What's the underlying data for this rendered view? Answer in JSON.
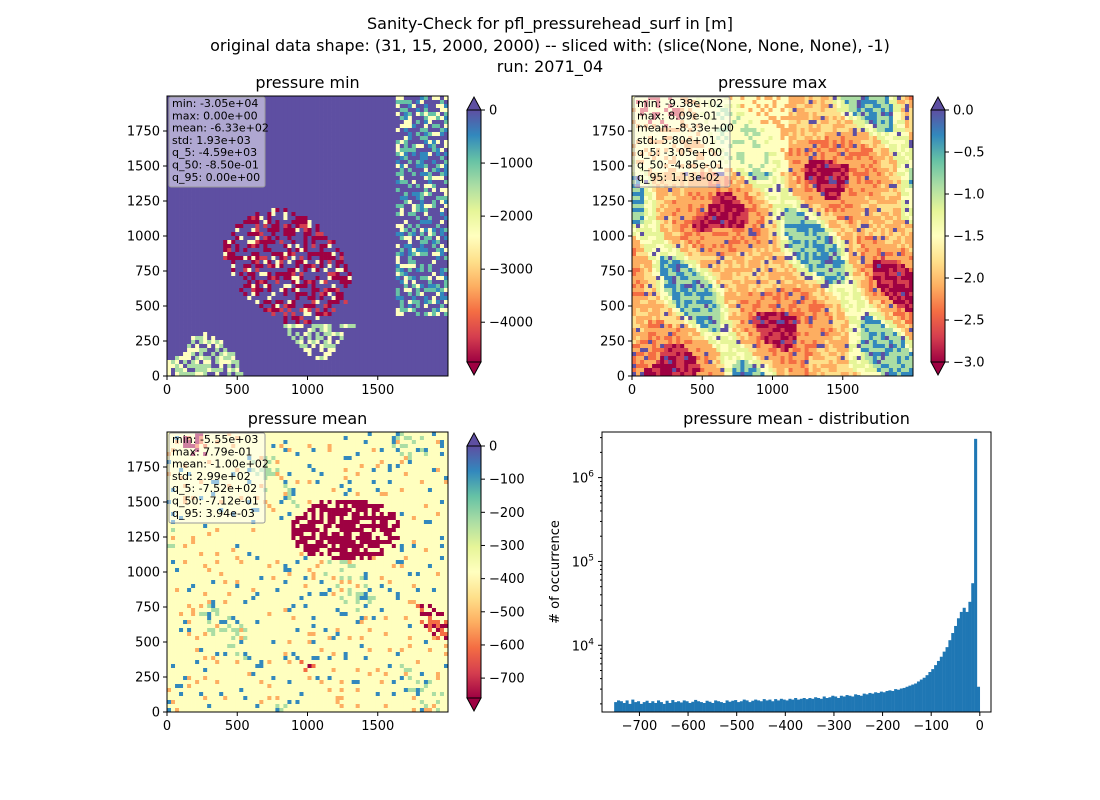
{
  "figure": {
    "suptitle_lines": [
      "Sanity-Check for pfl_pressurehead_surf in [m]",
      "original data shape: (31, 15, 2000, 2000) -- sliced with: (slice(None, None, None), -1)",
      "run: 2071_04"
    ]
  },
  "colors": {
    "spectral": [
      "#9e0142",
      "#d53e4f",
      "#f46d43",
      "#fdae61",
      "#fee08b",
      "#ffffbf",
      "#e6f598",
      "#abdda4",
      "#66c2a5",
      "#3288bd",
      "#5e4fa2"
    ],
    "histogram_bar": "#1f77b4"
  },
  "chart_data": [
    {
      "type": "heatmap",
      "title": "pressure min",
      "xlim": [
        0,
        2000
      ],
      "ylim": [
        0,
        2000
      ],
      "xticks": [
        0,
        500,
        1000,
        1500
      ],
      "yticks": [
        0,
        250,
        500,
        750,
        1000,
        1250,
        1500,
        1750
      ],
      "colorbar": {
        "min": -4750,
        "max": 0,
        "ticks": [
          0,
          -1000,
          -2000,
          -3000,
          -4000
        ]
      },
      "stats": [
        "min: -3.05e+04",
        "max: 0.00e+00",
        "mean: -6.33e+02",
        "std: 1.93e+03",
        "q_5: -4.59e+03",
        "q_50: -8.50e-01",
        "q_95: 0.00e+00"
      ]
    },
    {
      "type": "heatmap",
      "title": "pressure max",
      "xlim": [
        0,
        2000
      ],
      "ylim": [
        0,
        2000
      ],
      "xticks": [
        0,
        500,
        1000,
        1500
      ],
      "yticks": [
        0,
        250,
        500,
        750,
        1000,
        1250,
        1500,
        1750
      ],
      "colorbar": {
        "min": -3.0,
        "max": 0.0,
        "ticks": [
          "0.0",
          "-0.5",
          "-1.0",
          "-1.5",
          "-2.0",
          "-2.5",
          "-3.0"
        ]
      },
      "stats": [
        "min: -9.38e+02",
        "max: 8.09e-01",
        "mean: -8.33e+00",
        "std: 5.80e+01",
        "q_5: -3.05e+00",
        "q_50: -4.85e-01",
        "q_95: 1.13e-02"
      ]
    },
    {
      "type": "heatmap",
      "title": "pressure mean",
      "xlim": [
        0,
        2000
      ],
      "ylim": [
        0,
        2000
      ],
      "xticks": [
        0,
        500,
        1000,
        1500
      ],
      "yticks": [
        0,
        250,
        500,
        750,
        1000,
        1250,
        1500,
        1750
      ],
      "colorbar": {
        "min": -760,
        "max": 0,
        "ticks": [
          0,
          -100,
          -200,
          -300,
          -400,
          -500,
          -600,
          -700
        ]
      },
      "stats": [
        "min: -5.55e+03",
        "max: 7.79e-01",
        "mean: -1.00e+02",
        "std: 2.99e+02",
        "q_5: -7.52e+02",
        "q_50: -7.12e-01",
        "q_95: 3.94e-03"
      ]
    },
    {
      "type": "bar",
      "title": "pressure mean - distribution",
      "ylabel": "# of occurrence",
      "yscale": "log",
      "xlim": [
        -777,
        23
      ],
      "ylim": [
        1600,
        3500000
      ],
      "xticks": [
        -700,
        -600,
        -500,
        -400,
        -300,
        -200,
        -100,
        0
      ],
      "yticks": [
        {
          "value": 10000,
          "label": "10^4"
        },
        {
          "value": 100000,
          "label": "10^5"
        },
        {
          "value": 1000000,
          "label": "10^6"
        }
      ],
      "bin_range": [
        -752,
        0
      ],
      "bin_width": 5,
      "values": [
        2100,
        2200,
        2150,
        2050,
        2200,
        2000,
        2250,
        2100,
        2150,
        2000,
        2100,
        2180,
        2050,
        2150,
        2050,
        2200,
        2100,
        2000,
        2180,
        2050,
        2220,
        2100,
        2150,
        2080,
        2200,
        2150,
        2050,
        2120,
        2230,
        2150,
        2100,
        2050,
        2180,
        2120,
        2050,
        2200,
        2150,
        2100,
        2050,
        2200,
        2120,
        2180,
        2220,
        2100,
        2150,
        2250,
        2200,
        2100,
        2180,
        2250,
        2200,
        2150,
        2280,
        2200,
        2250,
        2150,
        2280,
        2200,
        2300,
        2250,
        2200,
        2300,
        2250,
        2350,
        2250,
        2300,
        2350,
        2280,
        2350,
        2300,
        2400,
        2350,
        2300,
        2450,
        2350,
        2400,
        2500,
        2450,
        2350,
        2500,
        2450,
        2550,
        2500,
        2450,
        2600,
        2550,
        2500,
        2650,
        2600,
        2700,
        2650,
        2750,
        2700,
        2800,
        2750,
        2850,
        2900,
        2850,
        3000,
        2950,
        3050,
        3100,
        3200,
        3300,
        3400,
        3500,
        3700,
        3900,
        4100,
        4400,
        4800,
        5200,
        5800,
        6500,
        7300,
        8400,
        9500,
        11500,
        14000,
        17000,
        21000,
        25000,
        28000,
        25000,
        33000,
        55000,
        2900000,
        3200
      ]
    }
  ]
}
